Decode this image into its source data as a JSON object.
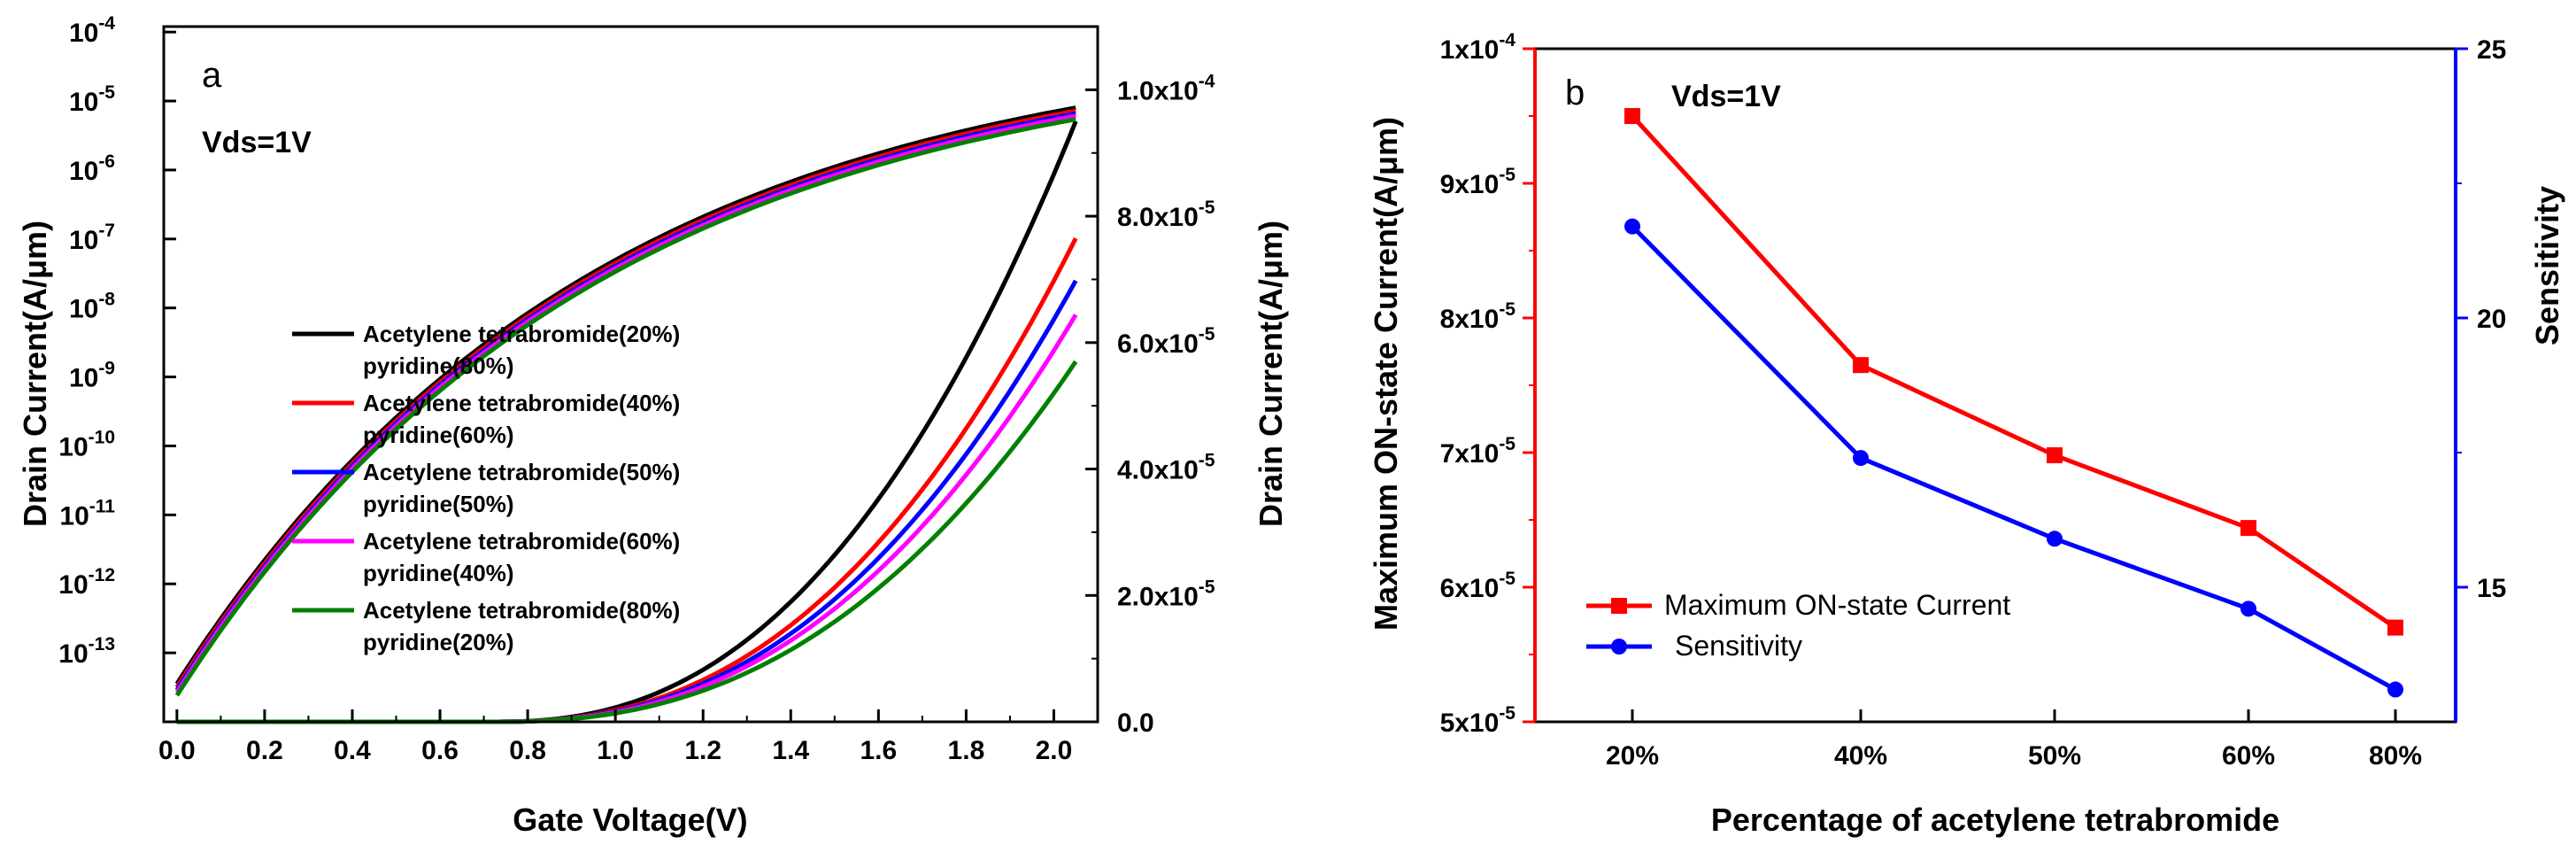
{
  "chart_data": [
    {
      "type": "line",
      "panel_label": "a",
      "annotation": "Vds=1V",
      "xlabel": "Gate Voltage(V)",
      "ylabel_left": "Drain Current(A/μm)",
      "ylabel_right": "Drain Current(A/μm)",
      "xlim": [
        -0.03,
        2.1
      ],
      "ylim_log": [
        1e-14,
        0.00012
      ],
      "ylim_linear": [
        0,
        0.00011
      ],
      "x_ticks": [
        "0.0",
        "0.2",
        "0.4",
        "0.6",
        "0.8",
        "1.0",
        "1.2",
        "1.4",
        "1.6",
        "1.8",
        "2.0"
      ],
      "y_log_ticks": [
        {
          "base": "10",
          "exp": "-4"
        },
        {
          "base": "10",
          "exp": "-5"
        },
        {
          "base": "10",
          "exp": "-6"
        },
        {
          "base": "10",
          "exp": "-7"
        },
        {
          "base": "10",
          "exp": "-8"
        },
        {
          "base": "10",
          "exp": "-9"
        },
        {
          "base": "10",
          "exp": "-10"
        },
        {
          "base": "10",
          "exp": "-11"
        },
        {
          "base": "10",
          "exp": "-12"
        },
        {
          "base": "10",
          "exp": "-13"
        }
      ],
      "y_linear_ticks": [
        {
          "mant": "0.0",
          "exp": ""
        },
        {
          "mant": "2.0x10",
          "exp": "-5"
        },
        {
          "mant": "4.0x10",
          "exp": "-5"
        },
        {
          "mant": "6.0x10",
          "exp": "-5"
        },
        {
          "mant": "8.0x10",
          "exp": "-5"
        },
        {
          "mant": "1.0x10",
          "exp": "-4"
        }
      ],
      "series": [
        {
          "name": "Acetylene tetrabromide(20%)",
          "name2": "pyridine(80%)",
          "color": "#000000",
          "ion": 9.5e-05,
          "log_scale": 1.0
        },
        {
          "name": "Acetylene tetrabromide(40%)",
          "name2": "pyridine(60%)",
          "color": "#ff0000",
          "ion": 7.65e-05,
          "log_scale": 0.9
        },
        {
          "name": "Acetylene tetrabromide(50%)",
          "name2": "pyridine(50%)",
          "color": "#0000ff",
          "ion": 6.98e-05,
          "log_scale": 0.82
        },
        {
          "name": "Acetylene tetrabromide(60%)",
          "name2": "pyridine(40%)",
          "color": "#ff00ff",
          "ion": 6.44e-05,
          "log_scale": 0.76
        },
        {
          "name": "Acetylene tetrabromide(80%)",
          "name2": "pyridine(20%)",
          "color": "#008000",
          "ion": 5.7e-05,
          "log_scale": 0.68
        }
      ]
    },
    {
      "type": "line",
      "panel_label": "b",
      "annotation": "Vds=1V",
      "xlabel": "Percentage of acetylene tetrabromide",
      "ylabel_left": "Maximum ON-state Current(A/μm)",
      "ylabel_right": "Sensitivity",
      "categories": [
        "20%",
        "40%",
        "50%",
        "60%",
        "80%"
      ],
      "ylim_left": [
        5e-05,
        0.0001
      ],
      "ylim_right": [
        12.5,
        25
      ],
      "y_left_ticks": [
        {
          "mant": "5x10",
          "exp": "-5",
          "value": 5e-05
        },
        {
          "mant": "6x10",
          "exp": "-5",
          "value": 6e-05
        },
        {
          "mant": "7x10",
          "exp": "-5",
          "value": 7e-05
        },
        {
          "mant": "8x10",
          "exp": "-5",
          "value": 8e-05
        },
        {
          "mant": "9x10",
          "exp": "-5",
          "value": 9e-05
        },
        {
          "mant": "1x10",
          "exp": "-4",
          "value": 0.0001
        }
      ],
      "y_right_ticks": [
        "15",
        "20",
        "25"
      ],
      "series": [
        {
          "name": "Maximum ON-state Current",
          "axis": "left",
          "marker": "square",
          "color": "#ff0000",
          "values": [
            9.5e-05,
            7.65e-05,
            6.98e-05,
            6.44e-05,
            5.7e-05
          ]
        },
        {
          "name": "Sensitivity",
          "axis": "right",
          "marker": "circle",
          "color": "#0000ff",
          "values": [
            21.7,
            17.4,
            15.9,
            14.6,
            13.1
          ]
        }
      ]
    }
  ]
}
